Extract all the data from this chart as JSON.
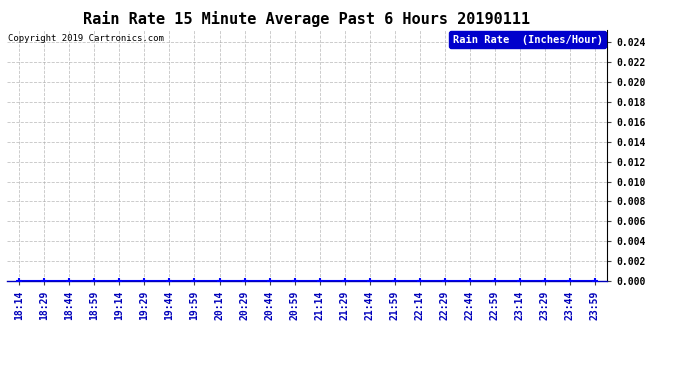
{
  "title": "Rain Rate 15 Minute Average Past 6 Hours 20190111",
  "copyright_text": "Copyright 2019 Cartronics.com",
  "legend_label": "Rain Rate  (Inches/Hour)",
  "legend_bg": "#0000CC",
  "legend_fg": "#FFFFFF",
  "x_labels": [
    "18:14",
    "18:29",
    "18:44",
    "18:59",
    "19:14",
    "19:29",
    "19:44",
    "19:59",
    "20:14",
    "20:29",
    "20:44",
    "20:59",
    "21:14",
    "21:29",
    "21:44",
    "21:59",
    "22:14",
    "22:29",
    "22:44",
    "22:59",
    "23:14",
    "23:29",
    "23:44",
    "23:59"
  ],
  "y_values": [
    0.0,
    0.0,
    0.0,
    0.0,
    0.0,
    0.0,
    0.0,
    0.0,
    0.0,
    0.0,
    0.0,
    0.0,
    0.0,
    0.0,
    0.0,
    0.0,
    0.0,
    0.0,
    0.0,
    0.0,
    0.0,
    0.0,
    0.0,
    0.0
  ],
  "y_min": 0.0,
  "y_max": 0.0252,
  "y_ticks": [
    0.0,
    0.002,
    0.004,
    0.006,
    0.008,
    0.01,
    0.012,
    0.014,
    0.016,
    0.018,
    0.02,
    0.022,
    0.024
  ],
  "line_color": "#0000FF",
  "marker_color": "#0000FF",
  "grid_color": "#AAAAAA",
  "bg_color": "#FFFFFF",
  "plot_bg_color": "#FFFFFF",
  "title_fontsize": 11,
  "tick_fontsize": 7,
  "copyright_fontsize": 6.5,
  "legend_fontsize": 7.5
}
